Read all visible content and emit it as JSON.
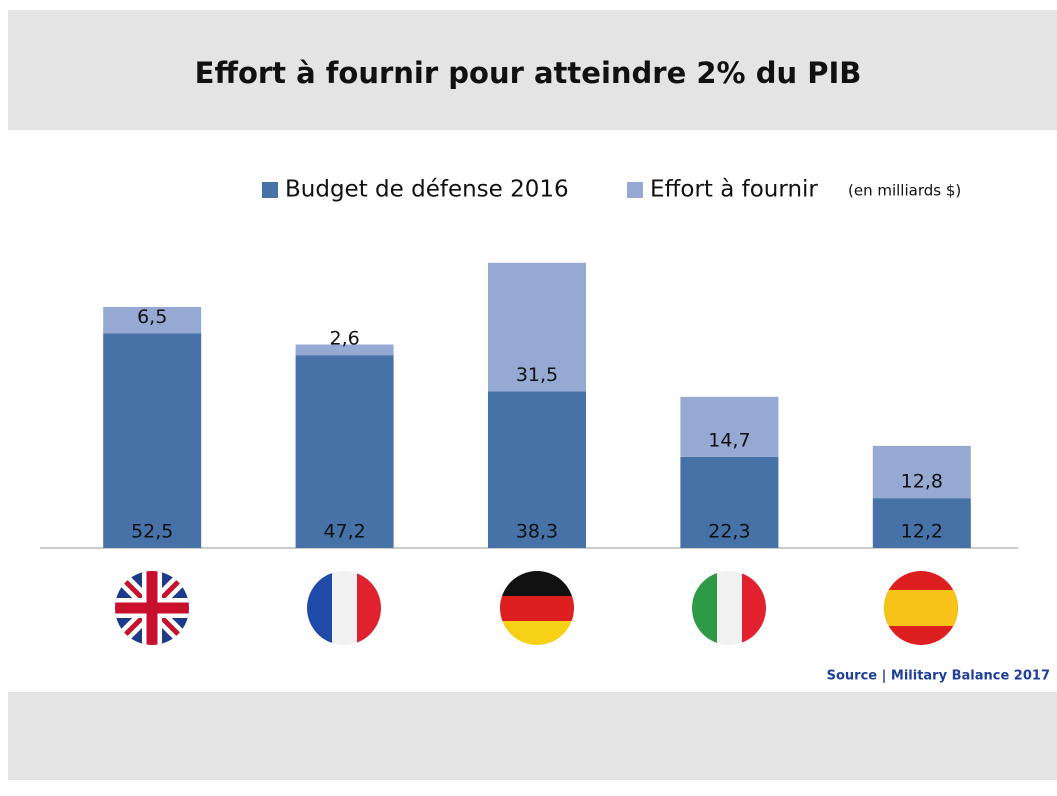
{
  "chart_data": {
    "type": "stacked_bar",
    "title": "Effort à fournir pour atteindre 2% du PIB",
    "unit_note": "(en milliards $)",
    "source": "Source | Military Balance 2017",
    "categories": [
      null,
      null,
      null,
      null,
      null
    ],
    "series": [
      {
        "name": "Budget de défense 2016",
        "color": "#4672a7",
        "values": [
          52.5,
          47.2,
          38.3,
          22.3,
          12.2
        ],
        "value_labels": [
          "52,5",
          "47,2",
          "38,3",
          "22,3",
          "12,2"
        ]
      },
      {
        "name": "Effort à fournir",
        "color": "#95a9d2",
        "values": [
          6.5,
          2.6,
          31.5,
          14.7,
          12.8
        ],
        "value_labels": [
          "6,5",
          "2,6",
          "31,5",
          "14,7",
          "12,8"
        ]
      }
    ],
    "ylim": [
      0,
      70
    ]
  }
}
